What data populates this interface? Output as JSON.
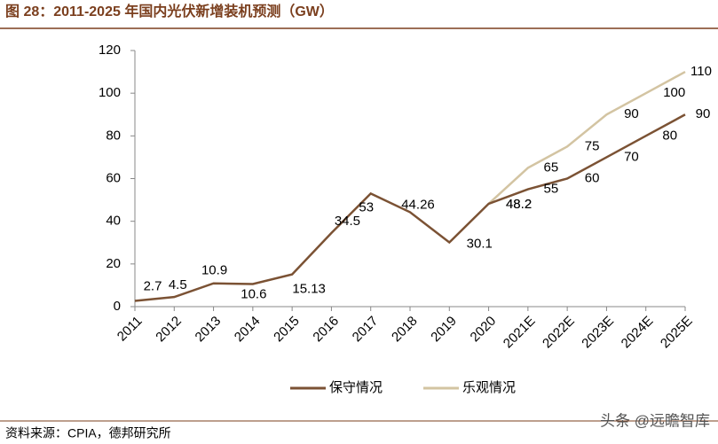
{
  "chart_data": {
    "type": "line",
    "title": "图 28：2011-2025 年国内光伏新增装机预测（GW）",
    "source": "资料来源：CPIA，德邦研究所",
    "watermark": "头条 @远瞻智库",
    "categories": [
      "2011",
      "2012",
      "2013",
      "2014",
      "2015",
      "2016",
      "2017",
      "2018",
      "2019",
      "2020",
      "2021E",
      "2022E",
      "2023E",
      "2024E",
      "2025E"
    ],
    "series": [
      {
        "name": "保守情况",
        "color": "#7b5234",
        "values": [
          2.7,
          4.5,
          10.9,
          10.6,
          15.13,
          34.5,
          53,
          44.26,
          30.1,
          48.2,
          55,
          60,
          70,
          80,
          90
        ]
      },
      {
        "name": "乐观情况",
        "color": "#d3c4a2",
        "values": [
          null,
          null,
          null,
          null,
          null,
          null,
          null,
          null,
          null,
          48.2,
          65,
          75,
          90,
          100,
          110
        ]
      }
    ],
    "ylim": [
      0,
      120
    ],
    "yticks": [
      0,
      20,
      40,
      60,
      80,
      100,
      120
    ],
    "legend": "bottom"
  }
}
